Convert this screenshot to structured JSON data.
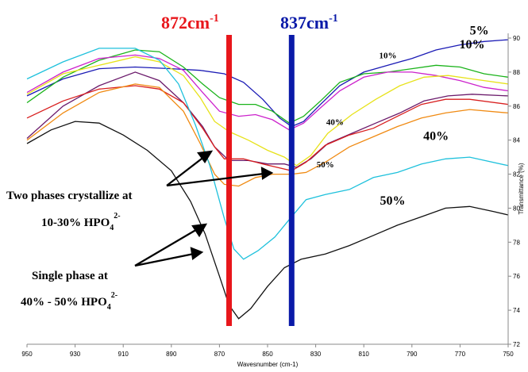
{
  "chart_data": {
    "type": "line",
    "xlabel": "Wavesnumber (cm-1)",
    "ylabel": "Transmittance (%)",
    "xlim": [
      950,
      750
    ],
    "ylim": [
      72,
      90
    ],
    "x_reversed": true,
    "x_ticks": [
      "950",
      "930",
      "910",
      "890",
      "870",
      "850",
      "830",
      "810",
      "790",
      "770",
      "750"
    ],
    "y_ticks": [
      "72",
      "74",
      "76",
      "78",
      "80",
      "82",
      "84",
      "86",
      "88",
      "90"
    ],
    "grid": false,
    "peak_markers": [
      {
        "prefix": "872cm",
        "sup": "-1",
        "x": 866,
        "color": "#e8161b"
      },
      {
        "prefix": "837cm",
        "sup": "-1",
        "x": 840,
        "color": "#0a1aa8"
      }
    ],
    "series": [
      {
        "color": "#1b1bb5",
        "points": [
          [
            950,
            86.6
          ],
          [
            935,
            87.6
          ],
          [
            920,
            88.2
          ],
          [
            905,
            88.3
          ],
          [
            890,
            88.2
          ],
          [
            878,
            88.1
          ],
          [
            868,
            87.9
          ],
          [
            860,
            87.4
          ],
          [
            852,
            86.4
          ],
          [
            845,
            85.3
          ],
          [
            840,
            84.8
          ],
          [
            835,
            85.1
          ],
          [
            828,
            86.1
          ],
          [
            820,
            87.2
          ],
          [
            810,
            88.0
          ],
          [
            800,
            88.4
          ],
          [
            790,
            88.8
          ],
          [
            780,
            89.3
          ],
          [
            770,
            89.6
          ],
          [
            760,
            89.8
          ],
          [
            750,
            89.9
          ]
        ]
      },
      {
        "color": "#1ab31a",
        "points": [
          [
            950,
            86.2
          ],
          [
            935,
            87.7
          ],
          [
            920,
            88.7
          ],
          [
            905,
            89.3
          ],
          [
            895,
            89.2
          ],
          [
            885,
            88.3
          ],
          [
            877,
            87.3
          ],
          [
            870,
            86.5
          ],
          [
            862,
            86.1
          ],
          [
            855,
            86.1
          ],
          [
            848,
            85.7
          ],
          [
            841,
            85.0
          ],
          [
            835,
            85.4
          ],
          [
            828,
            86.3
          ],
          [
            820,
            87.4
          ],
          [
            810,
            87.9
          ],
          [
            800,
            88.0
          ],
          [
            790,
            88.2
          ],
          [
            780,
            88.4
          ],
          [
            770,
            88.3
          ],
          [
            760,
            87.9
          ],
          [
            750,
            87.7
          ]
        ]
      },
      {
        "color": "#cc22cc",
        "points": [
          [
            950,
            86.8
          ],
          [
            935,
            88.0
          ],
          [
            920,
            88.8
          ],
          [
            905,
            89.0
          ],
          [
            895,
            88.8
          ],
          [
            885,
            88.1
          ],
          [
            877,
            86.8
          ],
          [
            870,
            85.7
          ],
          [
            862,
            85.4
          ],
          [
            855,
            85.5
          ],
          [
            848,
            85.2
          ],
          [
            841,
            84.6
          ],
          [
            835,
            85.0
          ],
          [
            828,
            85.9
          ],
          [
            820,
            86.9
          ],
          [
            810,
            87.7
          ],
          [
            800,
            88.0
          ],
          [
            790,
            88.0
          ],
          [
            780,
            87.8
          ],
          [
            770,
            87.5
          ],
          [
            760,
            87.1
          ],
          [
            750,
            86.9
          ]
        ]
      },
      {
        "color": "#e7e21a",
        "points": [
          [
            950,
            86.7
          ],
          [
            935,
            87.9
          ],
          [
            920,
            88.4
          ],
          [
            905,
            88.9
          ],
          [
            895,
            88.6
          ],
          [
            885,
            87.8
          ],
          [
            878,
            86.5
          ],
          [
            872,
            85.1
          ],
          [
            866,
            84.5
          ],
          [
            858,
            84.0
          ],
          [
            850,
            83.4
          ],
          [
            843,
            83.0
          ],
          [
            838,
            82.5
          ],
          [
            832,
            83.1
          ],
          [
            825,
            84.4
          ],
          [
            815,
            85.5
          ],
          [
            805,
            86.4
          ],
          [
            795,
            87.2
          ],
          [
            785,
            87.7
          ],
          [
            775,
            87.8
          ],
          [
            765,
            87.6
          ],
          [
            750,
            87.3
          ]
        ]
      },
      {
        "color": "#6b1a6b",
        "points": [
          [
            950,
            84.1
          ],
          [
            935,
            86.0
          ],
          [
            920,
            87.2
          ],
          [
            905,
            88.0
          ],
          [
            895,
            87.5
          ],
          [
            885,
            86.2
          ],
          [
            877,
            84.8
          ],
          [
            872,
            83.6
          ],
          [
            866,
            82.8
          ],
          [
            858,
            82.8
          ],
          [
            850,
            82.6
          ],
          [
            843,
            82.6
          ],
          [
            838,
            82.4
          ],
          [
            832,
            82.9
          ],
          [
            825,
            83.8
          ],
          [
            815,
            84.4
          ],
          [
            805,
            85.0
          ],
          [
            795,
            85.6
          ],
          [
            785,
            86.3
          ],
          [
            775,
            86.6
          ],
          [
            765,
            86.7
          ],
          [
            750,
            86.6
          ]
        ]
      },
      {
        "color": "#d81e1e",
        "points": [
          [
            950,
            85.3
          ],
          [
            935,
            86.3
          ],
          [
            920,
            87.0
          ],
          [
            905,
            87.2
          ],
          [
            895,
            87.0
          ],
          [
            885,
            86.2
          ],
          [
            877,
            84.7
          ],
          [
            872,
            83.6
          ],
          [
            868,
            82.9
          ],
          [
            860,
            82.9
          ],
          [
            852,
            82.6
          ],
          [
            846,
            82.4
          ],
          [
            840,
            82.2
          ],
          [
            834,
            82.7
          ],
          [
            826,
            83.7
          ],
          [
            816,
            84.3
          ],
          [
            806,
            84.7
          ],
          [
            796,
            85.4
          ],
          [
            786,
            86.1
          ],
          [
            776,
            86.4
          ],
          [
            766,
            86.4
          ],
          [
            750,
            86.1
          ]
        ]
      },
      {
        "color": "#f08a12",
        "points": [
          [
            950,
            84.0
          ],
          [
            935,
            85.6
          ],
          [
            920,
            86.8
          ],
          [
            905,
            87.3
          ],
          [
            895,
            87.1
          ],
          [
            885,
            85.7
          ],
          [
            878,
            83.8
          ],
          [
            872,
            82.0
          ],
          [
            868,
            81.4
          ],
          [
            862,
            81.3
          ],
          [
            855,
            81.8
          ],
          [
            848,
            82.0
          ],
          [
            840,
            82.0
          ],
          [
            834,
            82.1
          ],
          [
            826,
            82.7
          ],
          [
            816,
            83.6
          ],
          [
            806,
            84.2
          ],
          [
            796,
            84.8
          ],
          [
            786,
            85.3
          ],
          [
            776,
            85.6
          ],
          [
            766,
            85.8
          ],
          [
            750,
            85.6
          ]
        ]
      },
      {
        "color": "#1ec1dc",
        "points": [
          [
            950,
            87.6
          ],
          [
            935,
            88.6
          ],
          [
            920,
            89.4
          ],
          [
            905,
            89.4
          ],
          [
            895,
            88.7
          ],
          [
            887,
            87.3
          ],
          [
            880,
            84.9
          ],
          [
            874,
            82.5
          ],
          [
            868,
            79.4
          ],
          [
            864,
            77.6
          ],
          [
            860,
            77.0
          ],
          [
            854,
            77.5
          ],
          [
            847,
            78.3
          ],
          [
            840,
            79.5
          ],
          [
            834,
            80.5
          ],
          [
            826,
            80.8
          ],
          [
            816,
            81.1
          ],
          [
            806,
            81.8
          ],
          [
            796,
            82.1
          ],
          [
            786,
            82.6
          ],
          [
            776,
            82.9
          ],
          [
            766,
            83.0
          ],
          [
            750,
            82.5
          ]
        ]
      },
      {
        "color": "#111111",
        "points": [
          [
            950,
            83.8
          ],
          [
            940,
            84.6
          ],
          [
            930,
            85.1
          ],
          [
            920,
            85.0
          ],
          [
            910,
            84.3
          ],
          [
            900,
            83.4
          ],
          [
            890,
            82.2
          ],
          [
            882,
            80.4
          ],
          [
            876,
            78.5
          ],
          [
            870,
            76.0
          ],
          [
            866,
            74.3
          ],
          [
            862,
            73.5
          ],
          [
            857,
            74.1
          ],
          [
            850,
            75.4
          ],
          [
            843,
            76.5
          ],
          [
            836,
            77.0
          ],
          [
            826,
            77.3
          ],
          [
            816,
            77.8
          ],
          [
            806,
            78.4
          ],
          [
            796,
            79.0
          ],
          [
            786,
            79.5
          ],
          [
            776,
            80.0
          ],
          [
            766,
            80.1
          ],
          [
            756,
            79.8
          ],
          [
            750,
            79.6
          ]
        ]
      }
    ],
    "series_labels": [
      {
        "text": "5%",
        "size": "big",
        "x": 762,
        "y": 90.2
      },
      {
        "text": "10%",
        "size": "big",
        "x": 765,
        "y": 89.4
      },
      {
        "text": "10%",
        "size": "small",
        "x": 800,
        "y": 88.8
      },
      {
        "text": "40%",
        "size": "small",
        "x": 822,
        "y": 84.9
      },
      {
        "text": "40%",
        "size": "big",
        "x": 780,
        "y": 84.0
      },
      {
        "text": "50%",
        "size": "small",
        "x": 826,
        "y": 82.4
      },
      {
        "text": "50%",
        "size": "big",
        "x": 798,
        "y": 80.2
      }
    ],
    "annotations": [
      {
        "line1": "Two phases crystallize at",
        "line2_prefix": "10-30% HPO",
        "sub": "4",
        "sup": "2-"
      },
      {
        "line1": "Single phase at",
        "line2_prefix": "40% - 50% HPO",
        "sub": "4",
        "sup": "2-"
      }
    ]
  }
}
